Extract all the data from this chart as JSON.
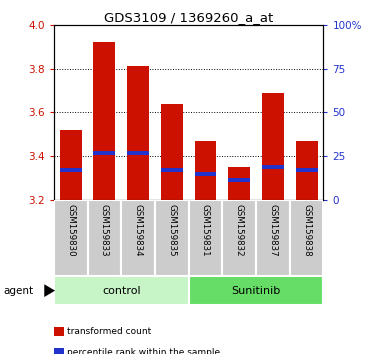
{
  "title": "GDS3109 / 1369260_a_at",
  "samples": [
    "GSM159830",
    "GSM159833",
    "GSM159834",
    "GSM159835",
    "GSM159831",
    "GSM159832",
    "GSM159837",
    "GSM159838"
  ],
  "bar_tops": [
    3.52,
    3.92,
    3.81,
    3.64,
    3.47,
    3.35,
    3.69,
    3.47
  ],
  "bar_bottom": 3.2,
  "blue_bottoms": [
    3.33,
    3.405,
    3.405,
    3.33,
    3.308,
    3.282,
    3.342,
    3.33
  ],
  "blue_tops": [
    3.348,
    3.423,
    3.423,
    3.348,
    3.326,
    3.3,
    3.36,
    3.348
  ],
  "ylim": [
    3.2,
    4.0
  ],
  "yticks_left": [
    3.2,
    3.4,
    3.6,
    3.8,
    4.0
  ],
  "yticks_right": [
    0,
    25,
    50,
    75,
    100
  ],
  "ytick_labels_right": [
    "0",
    "25",
    "50",
    "75",
    "100%"
  ],
  "groups": [
    {
      "label": "control",
      "indices": [
        0,
        1,
        2,
        3
      ],
      "color": "#c8f5c8"
    },
    {
      "label": "Sunitinib",
      "indices": [
        4,
        5,
        6,
        7
      ],
      "color": "#66dd66"
    }
  ],
  "bar_color": "#cc1100",
  "blue_color": "#2233cc",
  "sample_box_color": "#cccccc",
  "agent_label": "agent",
  "legend_items": [
    {
      "color": "#cc1100",
      "label": "transformed count"
    },
    {
      "color": "#2233cc",
      "label": "percentile rank within the sample"
    }
  ],
  "left_axis_color": "#cc1100",
  "right_axis_color": "#2233cc"
}
